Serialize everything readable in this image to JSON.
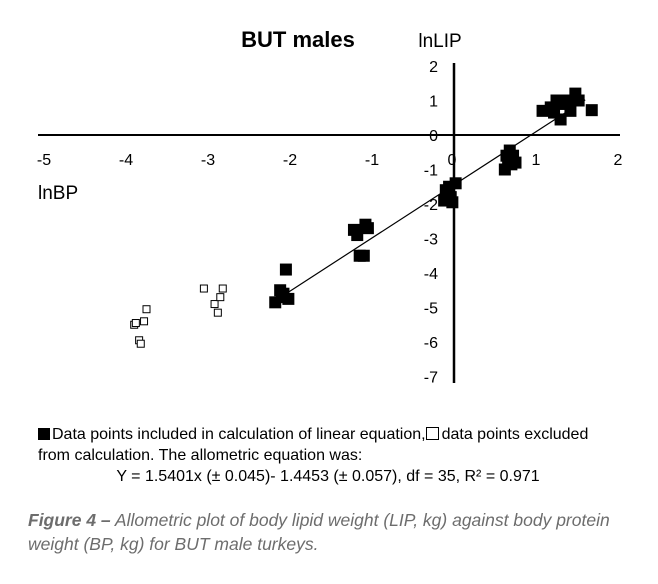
{
  "chart_data": {
    "type": "scatter",
    "title": "BUT males",
    "xlabel": "lnBP",
    "ylabel": "lnLIP",
    "xlim": [
      -5,
      2
    ],
    "ylim": [
      -7,
      2
    ],
    "x_ticks": [
      -5,
      -4,
      -3,
      -2,
      -1,
      0,
      1,
      2
    ],
    "y_ticks": [
      2,
      1,
      0,
      -1,
      -2,
      -3,
      -4,
      -5,
      -6,
      -7
    ],
    "series": [
      {
        "marker": "filled-square",
        "points": [
          [
            -2.18,
            -4.85
          ],
          [
            -2.12,
            -4.5
          ],
          [
            -2.1,
            -4.7
          ],
          [
            -2.08,
            -4.6
          ],
          [
            -2.05,
            -3.9
          ],
          [
            -2.02,
            -4.75
          ],
          [
            -1.22,
            -2.75
          ],
          [
            -1.18,
            -2.9
          ],
          [
            -1.15,
            -3.5
          ],
          [
            -1.1,
            -3.5
          ],
          [
            -1.08,
            -2.6
          ],
          [
            -1.05,
            -2.7
          ],
          [
            -0.12,
            -1.9
          ],
          [
            -0.1,
            -1.6
          ],
          [
            -0.08,
            -1.75
          ],
          [
            -0.06,
            -1.5
          ],
          [
            -0.04,
            -1.8
          ],
          [
            -0.02,
            -1.95
          ],
          [
            0.02,
            -1.4
          ],
          [
            0.62,
            -1.0
          ],
          [
            0.64,
            -0.6
          ],
          [
            0.66,
            -0.75
          ],
          [
            0.68,
            -0.45
          ],
          [
            0.7,
            -0.85
          ],
          [
            0.72,
            -0.6
          ],
          [
            0.75,
            -0.8
          ],
          [
            1.08,
            0.7
          ],
          [
            1.18,
            0.8
          ],
          [
            1.22,
            0.65
          ],
          [
            1.25,
            1.0
          ],
          [
            1.3,
            0.45
          ],
          [
            1.32,
            0.9
          ],
          [
            1.38,
            1.0
          ],
          [
            1.42,
            0.7
          ],
          [
            1.48,
            1.2
          ],
          [
            1.52,
            1.0
          ],
          [
            1.68,
            0.72
          ]
        ]
      },
      {
        "marker": "empty-square",
        "points": [
          [
            -3.9,
            -5.5
          ],
          [
            -3.88,
            -5.45
          ],
          [
            -3.84,
            -5.95
          ],
          [
            -3.82,
            -6.05
          ],
          [
            -3.78,
            -5.4
          ],
          [
            -3.75,
            -5.05
          ],
          [
            -3.05,
            -4.45
          ],
          [
            -2.92,
            -4.9
          ],
          [
            -2.88,
            -5.15
          ],
          [
            -2.85,
            -4.7
          ],
          [
            -2.82,
            -4.45
          ]
        ]
      }
    ],
    "regression": {
      "slope": 1.5401,
      "intercept": -1.4453,
      "x_range": [
        -2.15,
        1.6
      ]
    }
  },
  "legend": {
    "included_text": "Data points included in calculation of linear equation,",
    "excluded_text": "data points excluded",
    "excluded_text_line2": "from calculation. The allometric equation was:",
    "equation": "Y = 1.5401x (± 0.045)- 1.4453 (± 0.057), df = 35, R² = 0.971"
  },
  "caption": {
    "label": "Figure 4 –",
    "text": "Allometric plot of body lipid weight (LIP, kg) against body protein weight (BP, kg) for BUT male turkeys."
  }
}
